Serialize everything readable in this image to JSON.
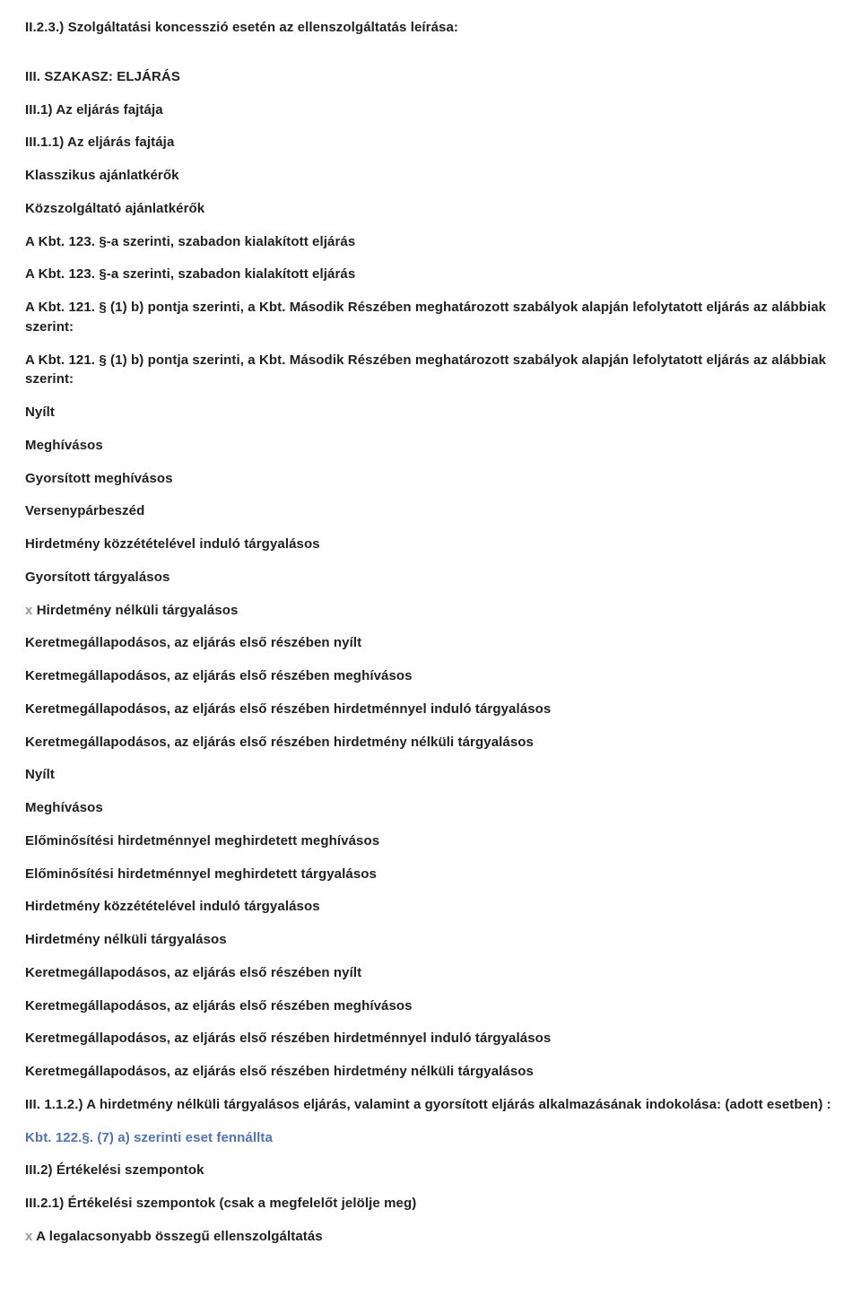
{
  "lines": [
    {
      "text": "II.2.3.) Szolgáltatási koncesszió esetén az ellenszolgáltatás leírása:",
      "gapAfter": true
    },
    {
      "text": "III. SZAKASZ: ELJÁRÁS"
    },
    {
      "text": "III.1) Az eljárás fajtája"
    },
    {
      "text": "III.1.1) Az eljárás fajtája"
    },
    {
      "text": "Klasszikus ajánlatkérők"
    },
    {
      "text": "Közszolgáltató ajánlatkérők"
    },
    {
      "text": " A Kbt. 123. §-a szerinti, szabadon kialakított eljárás"
    },
    {
      "text": " A Kbt. 123. §-a szerinti, szabadon kialakított eljárás"
    },
    {
      "text": "A Kbt. 121. § (1) b) pontja szerinti, a Kbt. Második Részében meghatározott szabályok alapján lefolytatott eljárás az alábbiak szerint:"
    },
    {
      "text": "A Kbt. 121. § (1) b) pontja szerinti, a Kbt. Második Részében meghatározott szabályok alapján lefolytatott eljárás az alábbiak szerint:"
    },
    {
      "text": " Nyílt"
    },
    {
      "text": " Meghívásos"
    },
    {
      "text": " Gyorsított meghívásos"
    },
    {
      "text": " Versenypárbeszéd"
    },
    {
      "text": " Hirdetmény közzétételével induló tárgyalásos"
    },
    {
      "text": " Gyorsított tárgyalásos"
    },
    {
      "prefix": "x ",
      "text": "Hirdetmény nélküli tárgyalásos"
    },
    {
      "text": " Keretmegállapodásos, az eljárás első részében nyílt"
    },
    {
      "text": " Keretmegállapodásos, az eljárás első részében meghívásos"
    },
    {
      "text": " Keretmegállapodásos, az eljárás első részében hirdetménnyel induló tárgyalásos"
    },
    {
      "text": " Keretmegállapodásos, az eljárás első részében hirdetmény nélküli tárgyalásos"
    },
    {
      "text": " Nyílt"
    },
    {
      "text": " Meghívásos"
    },
    {
      "text": " Előminősítési hirdetménnyel meghirdetett meghívásos"
    },
    {
      "text": " Előminősítési hirdetménnyel meghirdetett tárgyalásos"
    },
    {
      "text": " Hirdetmény közzétételével induló tárgyalásos"
    },
    {
      "text": " Hirdetmény nélküli tárgyalásos"
    },
    {
      "text": " Keretmegállapodásos, az eljárás első részében nyílt"
    },
    {
      "text": " Keretmegállapodásos, az eljárás első részében meghívásos"
    },
    {
      "text": " Keretmegállapodásos, az eljárás első részében hirdetménnyel induló tárgyalásos"
    },
    {
      "text": " Keretmegállapodásos, az eljárás első részében hirdetmény nélküli tárgyalásos"
    },
    {
      "text": "III. 1.1.2.) A hirdetmény nélküli tárgyalásos eljárás, valamint a gyorsított eljárás alkalmazásának indokolása: (adott esetben) :"
    },
    {
      "text": "Kbt. 122.§. (7) a) szerinti eset fennállta",
      "style": "note"
    },
    {
      "text": "III.2) Értékelési szempontok"
    },
    {
      "text": "III.2.1) Értékelési szempontok (csak a megfelelőt jelölje meg)"
    },
    {
      "prefix": "x ",
      "text": "A legalacsonyabb összegű ellenszolgáltatás"
    }
  ],
  "colors": {
    "text": "#202020",
    "note": "#4f73b3",
    "noteGray": "#9a9a9a",
    "background": "#ffffff"
  },
  "typography": {
    "fontFamily": "Arial, Helvetica, sans-serif",
    "fontSize": 15,
    "fontWeight": 700,
    "lineHeight": 1.45
  }
}
